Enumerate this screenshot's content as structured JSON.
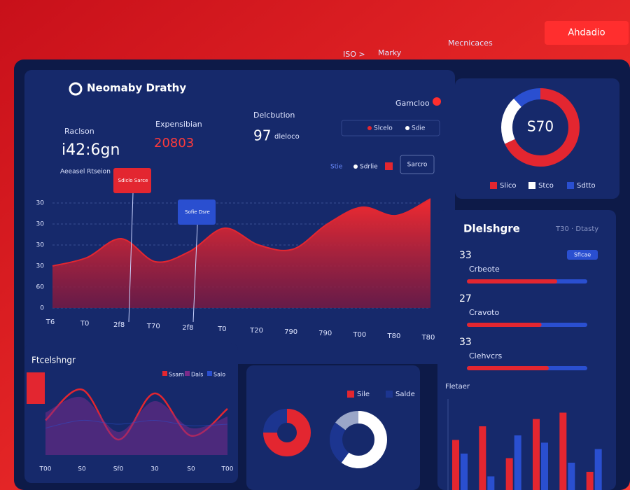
{
  "header": {
    "nav": [
      "ISO >",
      "Marky",
      "Mecnicaces"
    ],
    "button": "Ahdadio"
  },
  "overview": {
    "title": "Neomaby Drathy",
    "stats": [
      {
        "label": "Raclson",
        "value": "i42:6gn",
        "note": "Aeeasel Rtseion"
      },
      {
        "label": "Expensibian",
        "value": "20803"
      },
      {
        "label": "Delcbution",
        "value": "97",
        "note": "dleloco"
      }
    ],
    "filter": "Gamcloo",
    "legend": [
      "Slcelo",
      "Sdie"
    ],
    "controls": [
      "Stie",
      "Sdrlie"
    ],
    "button": "Sarcro"
  },
  "chart_data": [
    {
      "type": "area",
      "categories": [
        "T6",
        "T0",
        "2f8",
        "T70",
        "2f8",
        "T0",
        "T20",
        "790",
        "790",
        "T00",
        "T80",
        "T80"
      ],
      "values": [
        20,
        24,
        33,
        22,
        27,
        38,
        30,
        28,
        40,
        48,
        44,
        52
      ],
      "color": "#e32630",
      "ylim": [
        0,
        60
      ],
      "yticks": [
        0,
        {
          "value": 10,
          "label": "60"
        },
        {
          "value": 20,
          "label": "30"
        },
        {
          "value": 30,
          "label": "30"
        },
        {
          "value": 40,
          "label": "30"
        },
        {
          "value": 50,
          "label": "30"
        }
      ],
      "grid": true,
      "annotations": [
        "Sdiclo Sarce",
        "Sofie Dsre"
      ]
    },
    {
      "type": "donut",
      "center_label": "S70",
      "categories": [
        "Slico",
        "Stco",
        "Sdtto"
      ],
      "values": [
        68,
        20,
        12
      ],
      "colors": [
        "#e32630",
        "#ffffff",
        "#2a4fd0"
      ]
    },
    {
      "type": "progress",
      "title": "Dlelshgre",
      "subtitle": "T30 · Dtasty",
      "badge": "Sflcae",
      "xlim": [
        0,
        100
      ],
      "items": [
        {
          "value": 33,
          "name": "Crbeote",
          "progress": 75
        },
        {
          "value": 27,
          "name": "Cravoto",
          "progress": 62
        },
        {
          "value": 33,
          "name": "Clehvcrs",
          "progress": 68
        }
      ]
    },
    {
      "type": "bar",
      "title": "Fletaer",
      "ylim": [
        0,
        100
      ],
      "series": [
        {
          "color": "#e32630",
          "values": [
            55,
            70,
            35,
            78,
            85,
            20
          ]
        },
        {
          "color": "#2a4fd0",
          "values": [
            40,
            15,
            60,
            52,
            30,
            45
          ]
        }
      ]
    },
    {
      "type": "line",
      "title": "Ftcelshngr",
      "categories": [
        "T00",
        "S0",
        "Sf0",
        "30",
        "S0",
        "T00"
      ],
      "ylim": [
        0,
        100
      ],
      "series": [
        {
          "name": "Ssam",
          "color": "#e32630",
          "values": [
            45,
            85,
            20,
            80,
            25,
            60
          ]
        },
        {
          "name": "Dals",
          "color": "#7a2a8a",
          "values": [
            55,
            75,
            30,
            70,
            35,
            50
          ]
        },
        {
          "name": "Salo",
          "color": "#2a4fd0",
          "values": [
            35,
            45,
            40,
            45,
            38,
            40
          ]
        }
      ]
    },
    {
      "type": "donut",
      "categories": [
        "Sile",
        "Salde"
      ],
      "values": [
        75,
        25
      ],
      "colors": [
        "#e32630",
        "#1c3590"
      ]
    },
    {
      "type": "donut",
      "values": [
        60,
        25,
        15
      ],
      "colors": [
        "#ffffff",
        "#1c3590",
        "#9aa6c8"
      ]
    }
  ]
}
